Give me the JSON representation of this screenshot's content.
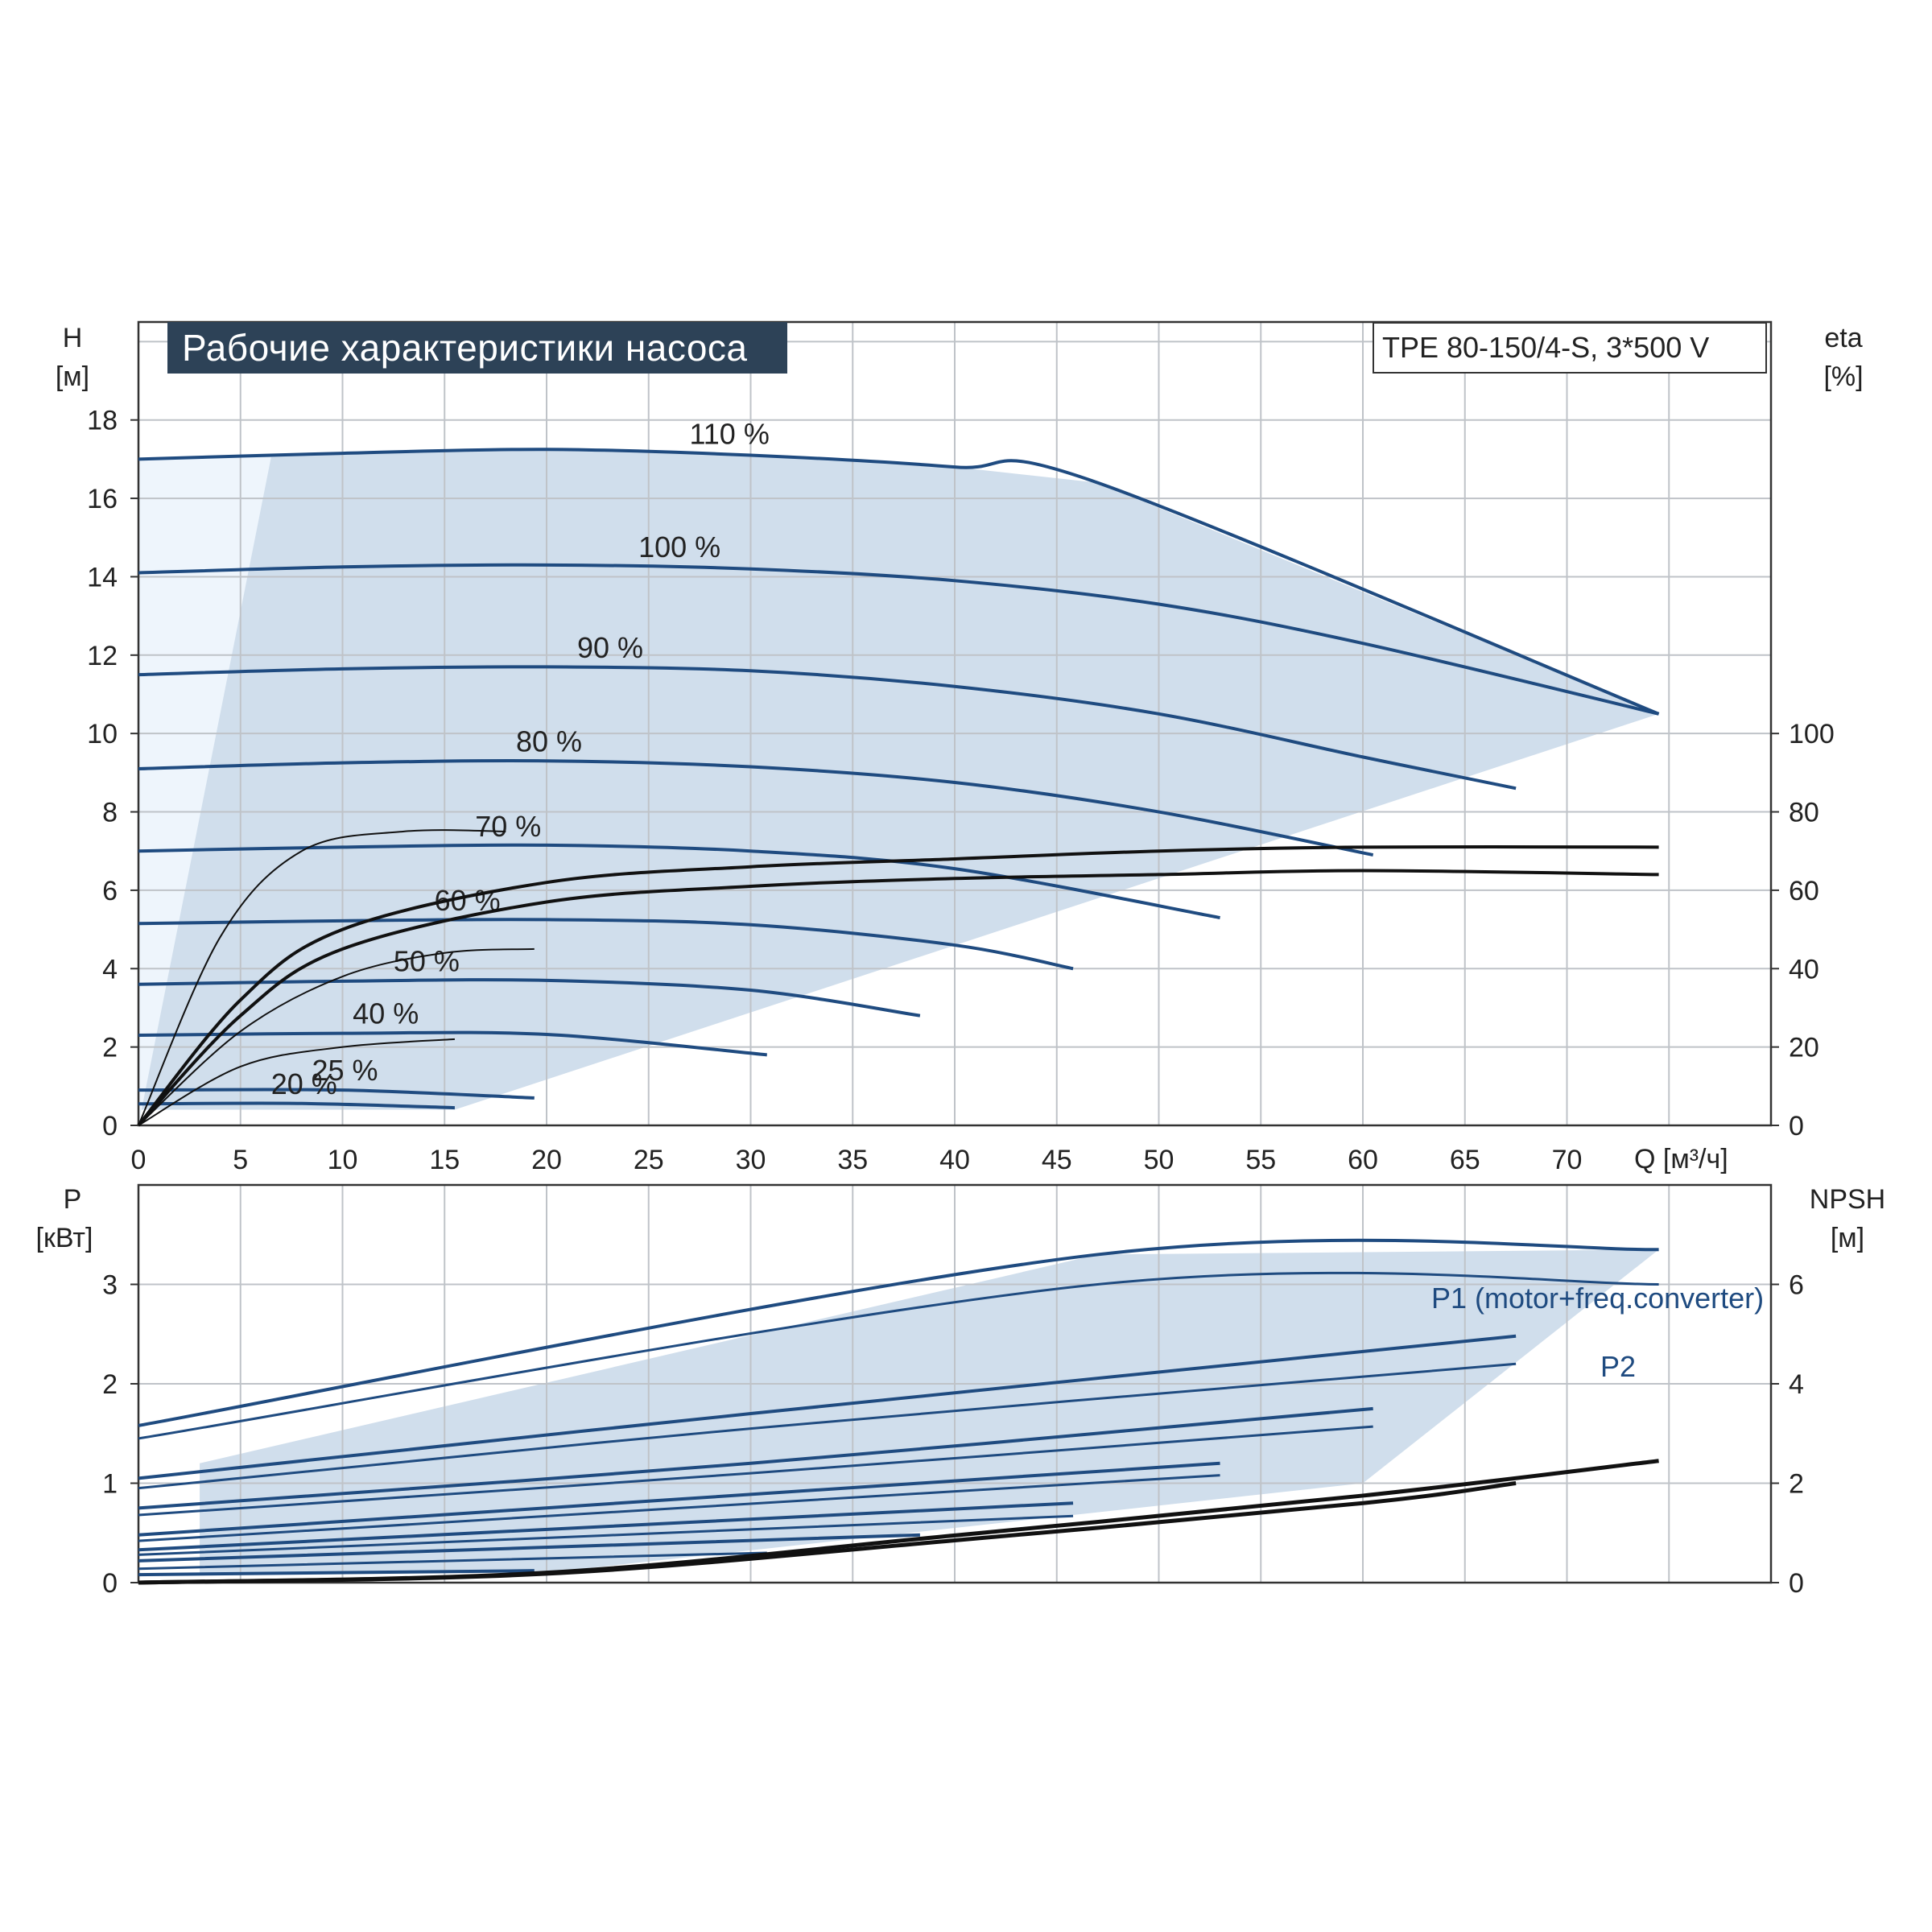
{
  "title": "Рабочие характеристики насоса",
  "model": "TPE 80-150/4-S, 3*500 V",
  "top_panel": {
    "y_left_label_1": "H",
    "y_left_label_2": "[м]",
    "y_right_label_1": "eta",
    "y_right_label_2": "[%]",
    "x_label": "Q [м³/ч]"
  },
  "bottom_panel": {
    "y_left_label_1": "P",
    "y_left_label_2": "[кВт]",
    "y_right_label_1": "NPSH",
    "y_right_label_2": "[м]",
    "p1_label": "P1 (motor+freq.converter)",
    "p2_label": "P2"
  },
  "colors": {
    "curve_blue": "#1f4b80",
    "area_fill": "#d0deec",
    "area_fill_light": "#eef5fc",
    "eta_curve": "#111111",
    "grid": "#bfc3c8",
    "title_bg": "#2d4257"
  },
  "chart_data": [
    {
      "type": "line",
      "name": "head",
      "x_ticks": [
        0,
        5,
        10,
        15,
        20,
        25,
        30,
        35,
        40,
        45,
        50,
        55,
        60,
        65,
        70
      ],
      "y_ticks": [
        0,
        2,
        4,
        6,
        8,
        10,
        12,
        14,
        16,
        18
      ],
      "y2_ticks": [
        0,
        20,
        40,
        60,
        80,
        100
      ],
      "xlim": [
        0,
        80
      ],
      "ylim": [
        0,
        20.5
      ],
      "y2lim": [
        0,
        100
      ],
      "grid": true,
      "series": [
        {
          "name": "110 %",
          "x": [
            0,
            10,
            20,
            30,
            40,
            47,
            74.5
          ],
          "y": [
            17.0,
            17.15,
            17.25,
            17.1,
            16.8,
            16.4,
            10.5
          ]
        },
        {
          "name": "100 %",
          "x": [
            0,
            10,
            20,
            30,
            40,
            50,
            60,
            74.5
          ],
          "y": [
            14.1,
            14.25,
            14.3,
            14.2,
            13.9,
            13.3,
            12.3,
            10.5
          ]
        },
        {
          "name": "90 %",
          "x": [
            0,
            10,
            20,
            30,
            40,
            50,
            60,
            67.5
          ],
          "y": [
            11.5,
            11.65,
            11.7,
            11.6,
            11.2,
            10.5,
            9.4,
            8.6
          ]
        },
        {
          "name": "80 %",
          "x": [
            0,
            10,
            20,
            30,
            40,
            50,
            60.5
          ],
          "y": [
            9.1,
            9.25,
            9.3,
            9.15,
            8.75,
            8.0,
            6.9
          ]
        },
        {
          "name": "70 %",
          "x": [
            0,
            10,
            20,
            30,
            40,
            53
          ],
          "y": [
            7.0,
            7.1,
            7.15,
            7.0,
            6.55,
            5.3
          ]
        },
        {
          "name": "60 %",
          "x": [
            0,
            10,
            20,
            30,
            40,
            45.8
          ],
          "y": [
            5.15,
            5.22,
            5.25,
            5.12,
            4.6,
            4.0
          ]
        },
        {
          "name": "50 %",
          "x": [
            0,
            10,
            20,
            30,
            38.3
          ],
          "y": [
            3.6,
            3.68,
            3.7,
            3.45,
            2.8
          ]
        },
        {
          "name": "40 %",
          "x": [
            0,
            10,
            20,
            30.8
          ],
          "y": [
            2.3,
            2.35,
            2.32,
            1.8
          ]
        },
        {
          "name": "25 %",
          "x": [
            0,
            10,
            19.4
          ],
          "y": [
            0.9,
            0.9,
            0.7
          ]
        },
        {
          "name": "20 %",
          "x": [
            0,
            8,
            15.5
          ],
          "y": [
            0.55,
            0.56,
            0.45
          ]
        }
      ],
      "eta_series": [
        {
          "x": [
            0,
            5,
            10,
            20,
            30,
            40,
            50,
            60,
            74.5
          ],
          "y": [
            0,
            32,
            50,
            62,
            66,
            68,
            70,
            71,
            71
          ]
        },
        {
          "x": [
            0,
            5,
            10,
            20,
            30,
            40,
            50,
            60,
            74.5
          ],
          "y": [
            0,
            28,
            45,
            57,
            61,
            63,
            64,
            65,
            64
          ]
        },
        {
          "x": [
            0,
            4,
            8,
            13,
            18
          ],
          "y": [
            0,
            48,
            70,
            75,
            75
          ]
        },
        {
          "x": [
            0,
            5,
            10,
            15,
            19.4
          ],
          "y": [
            0,
            24,
            38,
            44,
            45
          ]
        },
        {
          "x": [
            0,
            5,
            10,
            15.5
          ],
          "y": [
            0,
            15,
            20,
            22
          ]
        }
      ]
    },
    {
      "type": "line",
      "name": "power",
      "x_ticks": [
        0,
        5,
        10,
        15,
        20,
        25,
        30,
        35,
        40,
        45,
        50,
        55,
        60,
        65,
        70
      ],
      "y_ticks": [
        0,
        1,
        2,
        3
      ],
      "y2_ticks": [
        0,
        2,
        4,
        6
      ],
      "xlim": [
        0,
        80
      ],
      "ylim": [
        0,
        4
      ],
      "y2lim": [
        0,
        8
      ],
      "grid": true,
      "series": [
        {
          "name": "P1",
          "x": [
            0,
            47,
            74.5
          ],
          "y": [
            1.58,
            3.3,
            3.35
          ]
        },
        {
          "name": "P2",
          "x": [
            0,
            47,
            74.5
          ],
          "y": [
            1.45,
            3.0,
            3.0
          ]
        },
        {
          "name": "90 % P1",
          "x": [
            0,
            30,
            67.5
          ],
          "y": [
            1.05,
            1.7,
            2.48
          ]
        },
        {
          "name": "90 % P2",
          "x": [
            0,
            30,
            67.5
          ],
          "y": [
            0.95,
            1.55,
            2.2
          ]
        },
        {
          "name": "80 % P1",
          "x": [
            0,
            30,
            60.5
          ],
          "y": [
            0.75,
            1.2,
            1.75
          ]
        },
        {
          "name": "80 % P2",
          "x": [
            0,
            30,
            60.5
          ],
          "y": [
            0.68,
            1.1,
            1.57
          ]
        },
        {
          "name": "70 % P1",
          "x": [
            0,
            53
          ],
          "y": [
            0.48,
            1.2
          ]
        },
        {
          "name": "70 % P2",
          "x": [
            0,
            53
          ],
          "y": [
            0.42,
            1.08
          ]
        },
        {
          "name": "60 % P1",
          "x": [
            0,
            45.8
          ],
          "y": [
            0.33,
            0.8
          ]
        },
        {
          "name": "60 % P2",
          "x": [
            0,
            45.8
          ],
          "y": [
            0.28,
            0.67
          ]
        },
        {
          "name": "50 % P1",
          "x": [
            0,
            38.3
          ],
          "y": [
            0.22,
            0.48
          ]
        },
        {
          "name": "40 % P1",
          "x": [
            0,
            30.8
          ],
          "y": [
            0.14,
            0.3
          ]
        },
        {
          "name": "25 % P1",
          "x": [
            0,
            19.4
          ],
          "y": [
            0.08,
            0.12
          ]
        }
      ],
      "npsh_series": [
        {
          "x": [
            0,
            20,
            40,
            60,
            74.5
          ],
          "y": [
            0,
            0.2,
            0.95,
            1.75,
            2.45
          ]
        },
        {
          "x": [
            0,
            20,
            40,
            60,
            67.5
          ],
          "y": [
            0,
            0.18,
            0.85,
            1.6,
            2.0
          ]
        }
      ]
    }
  ]
}
